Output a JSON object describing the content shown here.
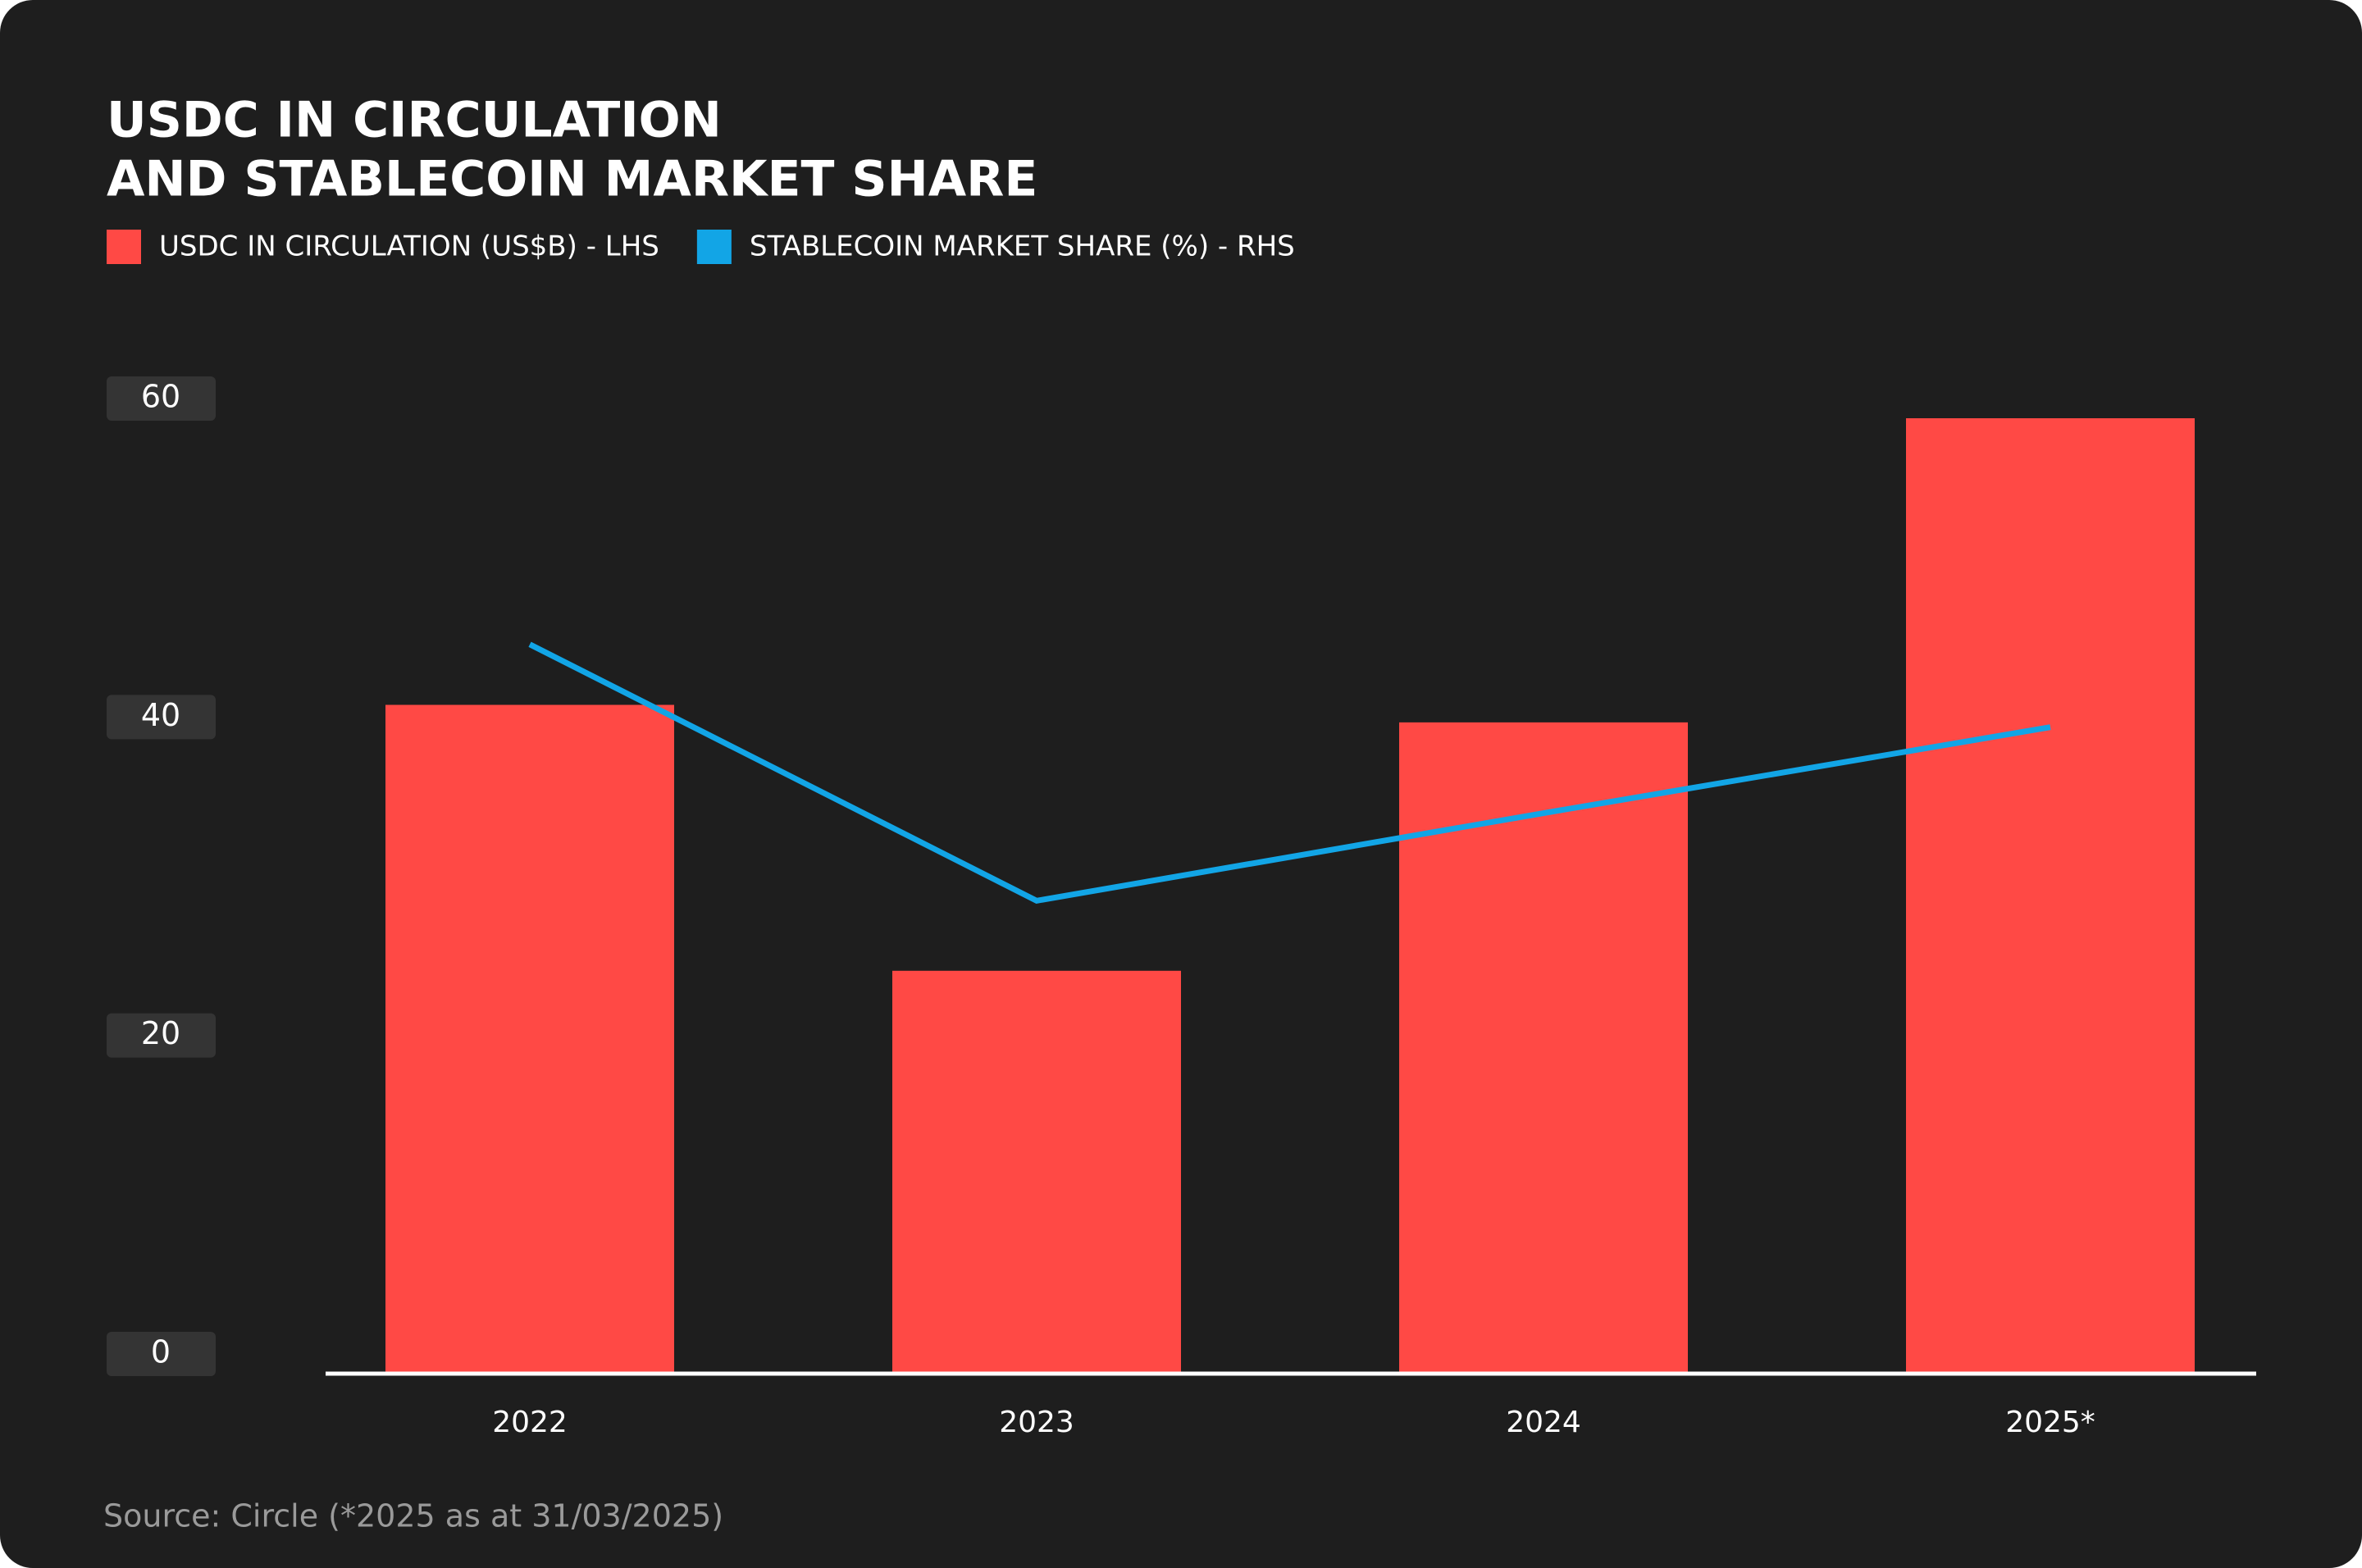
{
  "chart_data": {
    "type": "bar",
    "title": "USDC IN CIRCULATION",
    "subtitle": "AND STABLECOIN MARKET SHARE",
    "categories": [
      "2022",
      "2023",
      "2024",
      "2025*"
    ],
    "series": [
      {
        "name": "USDC IN CIRCULATION (US$B) - LHS",
        "type": "bar",
        "color": "#ff4945",
        "values": [
          42,
          25.3,
          40.9,
          60
        ]
      },
      {
        "name": "STABLECOIN MARKET SHARE (%) - RHS",
        "type": "line",
        "axis": "y2",
        "color": "#12a5e6",
        "values": [
          45.8,
          29.7,
          35.2,
          40.6
        ]
      }
    ],
    "ylim": [
      0,
      60
    ],
    "yticks": [
      0,
      20,
      40,
      60
    ],
    "y2lim": [
      0,
      60
    ],
    "source": "Source: Circle (*2025 as at 31/03/2025)"
  }
}
